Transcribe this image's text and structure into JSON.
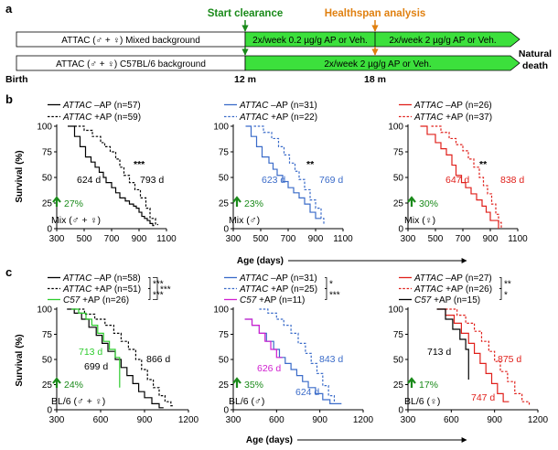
{
  "panel_a": {
    "label": "a",
    "start_clearance": "Start clearance",
    "healthspan_analysis": "Healthspan analysis",
    "birth": "Birth",
    "month12": "12 m",
    "month18": "18 m",
    "natural_death": [
      "Natural",
      "death"
    ],
    "bar1_label": "ATTAC (♂ + ♀) Mixed background",
    "bar1_seg1": "2x/week 0.2 µg/g AP or Veh.",
    "bar1_seg2": "2x/week 2 µg/g AP or Veh.",
    "bar2_label": "ATTAC (♂ + ♀) C57BL/6 background",
    "bar2_seg1": "2x/week 2 µg/g AP or Veh."
  },
  "panel_b_label": "b",
  "panel_c_label": "c",
  "y_axis_label": "Survival (%)",
  "x_axis_label": "Age (days)",
  "colors": {
    "black": "#000000",
    "blue": "#3a6bc9",
    "red": "#e0201b",
    "green": "#2ecc2e",
    "magenta": "#d020d0",
    "arrowgreen": "#1a8a1a",
    "orange": "#e08010"
  },
  "chart_data": [
    {
      "id": "b1",
      "type": "line",
      "xlim": [
        300,
        1100
      ],
      "ylim": [
        0,
        100
      ],
      "xticks": [
        "300",
        "500",
        "700",
        "900",
        "1100"
      ],
      "yticks": [
        "0",
        "25",
        "50",
        "75",
        "100"
      ],
      "legend": [
        {
          "italic": "ATTAC",
          "text": " –AP (n=57)",
          "style": "solid",
          "color": "black"
        },
        {
          "italic": "ATTAC",
          "text": " +AP (n=59)",
          "style": "dashed",
          "color": "black"
        }
      ],
      "sig": "***",
      "median_neg": "624 d",
      "median_pos": "793 d",
      "increase": "27%",
      "group": "Mix (♂ + ♀)",
      "series": [
        {
          "name": "–AP",
          "style": "solid",
          "color": "black",
          "x": [
            380,
            430,
            470,
            510,
            550,
            580,
            610,
            640,
            660,
            700,
            730,
            760,
            800,
            830,
            860,
            880,
            900,
            920,
            940,
            960,
            980,
            1000,
            1010
          ],
          "y": [
            100,
            90,
            80,
            70,
            65,
            60,
            55,
            50,
            45,
            40,
            35,
            30,
            27,
            24,
            22,
            20,
            16,
            12,
            10,
            8,
            5,
            3,
            3
          ]
        },
        {
          "name": "+AP",
          "style": "dashed",
          "color": "black",
          "x": [
            430,
            500,
            560,
            620,
            650,
            690,
            730,
            760,
            790,
            830,
            870,
            910,
            950,
            980,
            1020,
            1040
          ],
          "y": [
            100,
            96,
            90,
            84,
            80,
            75,
            68,
            60,
            52,
            45,
            38,
            30,
            20,
            10,
            4,
            4
          ]
        }
      ]
    },
    {
      "id": "b2",
      "type": "line",
      "xlim": [
        300,
        1100
      ],
      "ylim": [
        0,
        100
      ],
      "xticks": [
        "300",
        "500",
        "700",
        "900",
        "1100"
      ],
      "yticks": [
        "0",
        "25",
        "50",
        "75",
        "100"
      ],
      "legend": [
        {
          "italic": "ATTAC",
          "text": " –AP (n=31)",
          "style": "solid",
          "color": "blue"
        },
        {
          "italic": "ATTAC",
          "text": " +AP (n=22)",
          "style": "dashed",
          "color": "blue"
        }
      ],
      "sig": "**",
      "median_neg": "623 d",
      "median_pos": "769 d",
      "increase": "23%",
      "group": "Mix (♂)",
      "series": [
        {
          "name": "–AP",
          "style": "solid",
          "color": "blue",
          "x": [
            390,
            430,
            470,
            510,
            560,
            590,
            620,
            660,
            700,
            740,
            780,
            820,
            860,
            900,
            940
          ],
          "y": [
            100,
            90,
            80,
            70,
            64,
            58,
            52,
            46,
            40,
            35,
            30,
            24,
            16,
            10,
            10
          ]
        },
        {
          "name": "+AP",
          "style": "dashed",
          "color": "blue",
          "x": [
            450,
            520,
            580,
            630,
            670,
            710,
            750,
            780,
            820,
            860,
            900,
            940,
            960
          ],
          "y": [
            100,
            94,
            88,
            80,
            72,
            64,
            56,
            48,
            38,
            28,
            20,
            10,
            4
          ]
        }
      ]
    },
    {
      "id": "b3",
      "type": "line",
      "xlim": [
        300,
        1100
      ],
      "ylim": [
        0,
        100
      ],
      "xticks": [
        "300",
        "500",
        "700",
        "900",
        "1100"
      ],
      "yticks": [
        "0",
        "25",
        "50",
        "75",
        "100"
      ],
      "legend": [
        {
          "italic": "ATTAC",
          "text": " –AP (n=26)",
          "style": "solid",
          "color": "red"
        },
        {
          "italic": "ATTAC",
          "text": " +AP (n=37)",
          "style": "dashed",
          "color": "red"
        }
      ],
      "sig": "**",
      "median_neg": "647 d",
      "median_pos": "838 d",
      "increase": "30%",
      "group": "Mix (♀)",
      "series": [
        {
          "name": "–AP",
          "style": "solid",
          "color": "red",
          "x": [
            390,
            440,
            500,
            540,
            580,
            620,
            650,
            690,
            720,
            760,
            800,
            840,
            870,
            900,
            930,
            960
          ],
          "y": [
            100,
            92,
            84,
            78,
            72,
            62,
            52,
            45,
            40,
            34,
            28,
            22,
            16,
            8,
            8,
            0
          ]
        },
        {
          "name": "+AP",
          "style": "dashed",
          "color": "red",
          "x": [
            470,
            540,
            600,
            650,
            700,
            740,
            780,
            820,
            850,
            880,
            910,
            940,
            960,
            980
          ],
          "y": [
            100,
            94,
            88,
            82,
            76,
            68,
            60,
            50,
            42,
            34,
            24,
            14,
            6,
            0
          ]
        }
      ]
    },
    {
      "id": "c1",
      "type": "line",
      "xlim": [
        300,
        1200
      ],
      "ylim": [
        0,
        100
      ],
      "xticks": [
        "300",
        "600",
        "900",
        "1200"
      ],
      "yticks": [
        "0",
        "25",
        "50",
        "75",
        "100"
      ],
      "legend": [
        {
          "italic": "ATTAC",
          "text": " –AP (n=58)",
          "style": "solid",
          "color": "black"
        },
        {
          "italic": "ATTAC",
          "text": " +AP (n=51)",
          "style": "dashed",
          "color": "black"
        },
        {
          "italic": "C57",
          "text": " +AP (n=26)",
          "style": "solid",
          "color": "green"
        }
      ],
      "brackets": [
        "***",
        "***",
        "***"
      ],
      "median_c57": "713 d",
      "median_neg": "699 d",
      "median_pos": "866 d",
      "increase": "24%",
      "group": "BL/6 (♂ + ♀)",
      "series": [
        {
          "name": "–AP",
          "style": "solid",
          "color": "black",
          "x": [
            370,
            420,
            470,
            520,
            570,
            610,
            650,
            700,
            740,
            780,
            820,
            860,
            900,
            950,
            1000,
            1030
          ],
          "y": [
            100,
            96,
            90,
            82,
            74,
            66,
            58,
            50,
            42,
            34,
            26,
            18,
            12,
            6,
            2,
            2
          ]
        },
        {
          "name": "+AP",
          "style": "dashed",
          "color": "black",
          "x": [
            420,
            490,
            560,
            630,
            690,
            740,
            790,
            840,
            880,
            920,
            960,
            1000,
            1040,
            1080,
            1100
          ],
          "y": [
            100,
            95,
            90,
            84,
            76,
            68,
            60,
            50,
            40,
            30,
            22,
            14,
            8,
            4,
            4
          ]
        },
        {
          "name": "C57 +AP",
          "style": "solid",
          "color": "green",
          "x": [
            400,
            450,
            500,
            540,
            580,
            620,
            660,
            700,
            730
          ],
          "y": [
            100,
            96,
            90,
            84,
            76,
            68,
            60,
            52,
            22
          ]
        }
      ]
    },
    {
      "id": "c2",
      "type": "line",
      "xlim": [
        300,
        1200
      ],
      "ylim": [
        0,
        100
      ],
      "xticks": [
        "300",
        "600",
        "900",
        "1200"
      ],
      "yticks": [
        "0",
        "25",
        "50",
        "75",
        "100"
      ],
      "legend": [
        {
          "italic": "ATTAC",
          "text": " –AP (n=31)",
          "style": "solid",
          "color": "blue"
        },
        {
          "italic": "ATTAC",
          "text": " +AP (n=25)",
          "style": "dashed",
          "color": "blue"
        },
        {
          "italic": "C57",
          "text": " +AP (n=11)",
          "style": "solid",
          "color": "magenta"
        }
      ],
      "brackets": [
        "*",
        "***"
      ],
      "median_c57": "626 d",
      "median_neg": "624 d",
      "median_pos": "843 d",
      "increase": "35%",
      "group": "BL/6 (♂)",
      "series": [
        {
          "name": "–AP",
          "style": "solid",
          "color": "blue",
          "x": [
            380,
            430,
            480,
            530,
            580,
            620,
            660,
            700,
            740,
            780,
            820,
            870,
            920,
            970,
            1020,
            1050
          ],
          "y": [
            90,
            84,
            76,
            68,
            60,
            52,
            46,
            40,
            34,
            28,
            22,
            16,
            10,
            6,
            6,
            6
          ]
        },
        {
          "name": "+AP",
          "style": "dashed",
          "color": "blue",
          "x": [
            480,
            540,
            600,
            650,
            700,
            750,
            800,
            840,
            880,
            920,
            960,
            1000
          ],
          "y": [
            100,
            96,
            90,
            84,
            76,
            66,
            56,
            46,
            36,
            24,
            14,
            8
          ]
        },
        {
          "name": "C57 +AP",
          "style": "solid",
          "color": "magenta",
          "x": [
            380,
            430,
            480,
            520,
            560,
            600,
            640
          ],
          "y": [
            90,
            84,
            76,
            68,
            60,
            52,
            52
          ]
        }
      ]
    },
    {
      "id": "c3",
      "type": "line",
      "xlim": [
        300,
        1200
      ],
      "ylim": [
        0,
        100
      ],
      "xticks": [
        "300",
        "600",
        "900",
        "1200"
      ],
      "yticks": [
        "0",
        "25",
        "50",
        "75",
        "100"
      ],
      "legend": [
        {
          "italic": "ATTAC",
          "text": " –AP (n=27)",
          "style": "solid",
          "color": "red"
        },
        {
          "italic": "ATTAC",
          "text": " +AP (n=26)",
          "style": "dashed",
          "color": "red"
        },
        {
          "italic": "C57",
          "text": " +AP (n=15)",
          "style": "solid",
          "color": "black"
        }
      ],
      "brackets": [
        "**",
        "*"
      ],
      "median_c57": "713 d",
      "median_neg": "747 d",
      "median_pos": "875 d",
      "increase": "17%",
      "group": "BL/6 (♀)",
      "series": [
        {
          "name": "–AP",
          "style": "solid",
          "color": "red",
          "x": [
            500,
            560,
            620,
            670,
            720,
            760,
            800,
            840,
            880,
            920,
            960,
            1000
          ],
          "y": [
            100,
            94,
            86,
            76,
            66,
            56,
            46,
            36,
            26,
            16,
            8,
            8
          ]
        },
        {
          "name": "+AP",
          "style": "dashed",
          "color": "red",
          "x": [
            560,
            640,
            700,
            760,
            810,
            860,
            900,
            940,
            990,
            1040,
            1090,
            1140
          ],
          "y": [
            100,
            94,
            86,
            78,
            68,
            58,
            48,
            38,
            28,
            16,
            8,
            4
          ]
        },
        {
          "name": "C57 +AP",
          "style": "solid",
          "color": "black",
          "x": [
            500,
            560,
            610,
            660,
            700,
            720
          ],
          "y": [
            100,
            90,
            80,
            70,
            60,
            30
          ]
        }
      ]
    }
  ]
}
